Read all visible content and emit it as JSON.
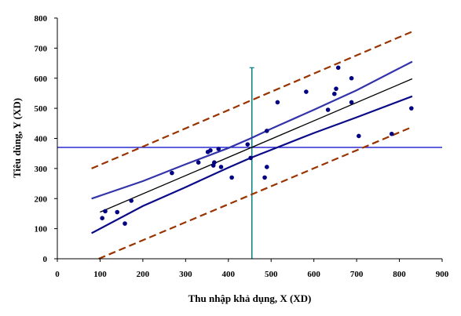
{
  "chart_data": {
    "type": "scatter",
    "xlabel": "Thu nhập khả dụng, X (XD)",
    "ylabel": "Tiêu dùng, Y (XD)",
    "xlim": [
      0,
      900
    ],
    "ylim": [
      0,
      800
    ],
    "xticks": [
      "0",
      "100",
      "200",
      "300",
      "400",
      "500",
      "600",
      "700",
      "800",
      "900"
    ],
    "yticks": [
      "0",
      "100",
      "200",
      "300",
      "400",
      "500",
      "600",
      "700",
      "800"
    ],
    "grid": false,
    "legend": "none",
    "points": [
      {
        "x": 105,
        "y": 135
      },
      {
        "x": 112,
        "y": 158
      },
      {
        "x": 140,
        "y": 155
      },
      {
        "x": 158,
        "y": 117
      },
      {
        "x": 173,
        "y": 193
      },
      {
        "x": 268,
        "y": 285
      },
      {
        "x": 330,
        "y": 320
      },
      {
        "x": 352,
        "y": 355
      },
      {
        "x": 358,
        "y": 360
      },
      {
        "x": 365,
        "y": 310
      },
      {
        "x": 367,
        "y": 320
      },
      {
        "x": 377,
        "y": 365
      },
      {
        "x": 383,
        "y": 305
      },
      {
        "x": 408,
        "y": 270
      },
      {
        "x": 445,
        "y": 380
      },
      {
        "x": 452,
        "y": 335
      },
      {
        "x": 485,
        "y": 270
      },
      {
        "x": 490,
        "y": 305
      },
      {
        "x": 490,
        "y": 425
      },
      {
        "x": 515,
        "y": 520
      },
      {
        "x": 582,
        "y": 555
      },
      {
        "x": 633,
        "y": 495
      },
      {
        "x": 648,
        "y": 548
      },
      {
        "x": 652,
        "y": 565
      },
      {
        "x": 657,
        "y": 635
      },
      {
        "x": 688,
        "y": 600
      },
      {
        "x": 688,
        "y": 520
      },
      {
        "x": 705,
        "y": 408
      },
      {
        "x": 782,
        "y": 415
      },
      {
        "x": 828,
        "y": 500
      }
    ],
    "series": [
      {
        "role": "regression-line",
        "color": "#000000",
        "dash": false,
        "x": [
          100,
          830
        ],
        "y": [
          155,
          598
        ]
      },
      {
        "role": "confidence-upper",
        "color": "#3333aa",
        "dash": false,
        "x": [
          80,
          200,
          300,
          400,
          452,
          500,
          600,
          700,
          830
        ],
        "y": [
          200,
          258,
          314,
          368,
          400,
          432,
          495,
          560,
          655
        ]
      },
      {
        "role": "confidence-lower",
        "color": "#0a0a88",
        "dash": false,
        "x": [
          80,
          200,
          300,
          400,
          452,
          500,
          600,
          700,
          830
        ],
        "y": [
          85,
          175,
          238,
          303,
          335,
          362,
          418,
          470,
          540
        ]
      },
      {
        "role": "prediction-upper",
        "color": "#993300",
        "dash": true,
        "x": [
          80,
          830
        ],
        "y": [
          300,
          755
        ]
      },
      {
        "role": "prediction-lower",
        "color": "#993300",
        "dash": true,
        "x": [
          80,
          830
        ],
        "y": [
          -10,
          438
        ]
      }
    ],
    "reference_lines": [
      {
        "orientation": "horizontal",
        "value": 370,
        "color": "#0000cc"
      },
      {
        "orientation": "vertical",
        "value": 455,
        "color": "#008080",
        "from": 0,
        "to": 635
      }
    ],
    "colors": {
      "points": "#000080",
      "axis": "#000000"
    }
  }
}
